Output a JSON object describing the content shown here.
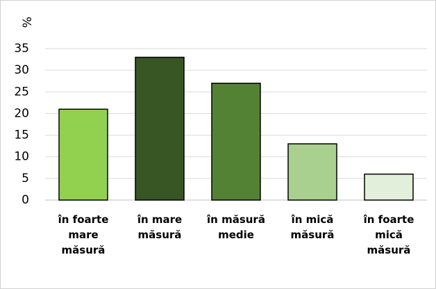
{
  "chart_data": {
    "type": "bar",
    "y_axis_label": "%",
    "categories": [
      "în foarte mare măsură",
      "în mare măsură",
      "în măsură medie",
      "în mică măsură",
      "în foarte mică măsură"
    ],
    "values": [
      21,
      33,
      27,
      13,
      6
    ],
    "colors": [
      "#92d050",
      "#375623",
      "#548235",
      "#a9d08e",
      "#e2efda"
    ],
    "ylim": [
      0,
      35
    ],
    "yticks": [
      0,
      5,
      10,
      15,
      20,
      25,
      30,
      35
    ],
    "grid": true
  }
}
